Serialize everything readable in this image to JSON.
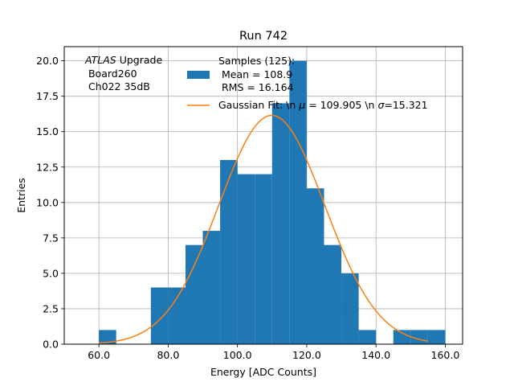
{
  "chart_data": {
    "type": "bar",
    "title": "Run 742",
    "xlabel": "Energy [ADC Counts]",
    "ylabel": "Entries",
    "xlim": [
      50,
      165
    ],
    "ylim": [
      0,
      21
    ],
    "grid": true,
    "xticks": [
      60,
      80,
      100,
      120,
      140,
      160
    ],
    "xtick_labels": [
      "60.0",
      "80.0",
      "100.0",
      "120.0",
      "140.0",
      "160.0"
    ],
    "yticks": [
      0,
      2.5,
      5,
      7.5,
      10,
      12.5,
      15,
      17.5,
      20
    ],
    "ytick_labels": [
      "0.0",
      "2.5",
      "5.0",
      "7.5",
      "10.0",
      "12.5",
      "15.0",
      "17.5",
      "20.0"
    ],
    "bin_edges": [
      60,
      65,
      70,
      75,
      80,
      85,
      90,
      95,
      100,
      105,
      110,
      115,
      120,
      125,
      130,
      135,
      140,
      145,
      150,
      155,
      160
    ],
    "counts": [
      1,
      0,
      0,
      4,
      4,
      7,
      8,
      13,
      12,
      12,
      17,
      20,
      11,
      7,
      5,
      1,
      0,
      1,
      1,
      1
    ],
    "histogram_color": "#1f77b4",
    "fit_color": "#ff7f0e",
    "fit": {
      "mu": 109.905,
      "sigma": 15.321,
      "amplitude": 16.15,
      "x_range": [
        60,
        155
      ]
    },
    "legend": {
      "location": "top-right",
      "hist_label_lines": [
        "Samples (125):",
        " Mean = 108.9",
        " RMS = 16.164"
      ],
      "fit_label_prefix": "Gaussian Fit: \\n ",
      "fit_mu_symbol": "μ",
      "fit_mu_text": " = 109.905 \\n ",
      "fit_sigma_symbol": "σ",
      "fit_sigma_text": "=15.321"
    },
    "annotation": {
      "line1_italic": "ATLAS",
      "line1_rest": " Upgrade",
      "line2": " Board260",
      "line3": " Ch022 35dB"
    }
  }
}
